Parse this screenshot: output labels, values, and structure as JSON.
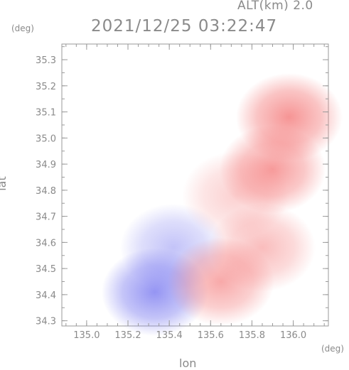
{
  "header": {
    "altitude": "ALT(km) 2.0",
    "timestamp": "2021/12/25 03:22:47"
  },
  "axes": {
    "y_unit": "(deg)",
    "x_unit": "(deg)",
    "y_label": "lat",
    "x_label": "lon"
  },
  "chart_data": {
    "type": "heatmap",
    "xlabel": "lon",
    "ylabel": "lat",
    "xlim": [
      134.88,
      136.17
    ],
    "ylim": [
      34.28,
      35.36
    ],
    "x_ticks": [
      135.0,
      135.2,
      135.4,
      135.6,
      135.8,
      136.0
    ],
    "x_tick_labels": [
      "135.0",
      "135.2",
      "135.4",
      "135.6",
      "135.8",
      "136.0"
    ],
    "y_ticks": [
      34.3,
      34.4,
      34.5,
      34.6,
      34.7,
      34.8,
      34.9,
      35.0,
      35.1,
      35.2,
      35.3
    ],
    "y_tick_labels": [
      "34.3",
      "34.4",
      "34.5",
      "34.6",
      "34.7",
      "34.8",
      "34.9",
      "35.0",
      "35.1",
      "35.2",
      "35.3"
    ],
    "colors": {
      "positive": "#f47a7a",
      "positive_light": "#f7c6c6",
      "negative": "#7a7af0",
      "negative_light": "#c9c9f3"
    },
    "regions": [
      {
        "sign": "negative",
        "lon": 135.42,
        "lat": 34.58,
        "intensity": 0.45
      },
      {
        "sign": "negative",
        "lon": 135.33,
        "lat": 34.41,
        "intensity": 0.8
      },
      {
        "sign": "positive",
        "lon": 135.72,
        "lat": 34.78,
        "intensity": 0.35
      },
      {
        "sign": "positive",
        "lon": 135.9,
        "lat": 34.88,
        "intensity": 0.75
      },
      {
        "sign": "positive",
        "lon": 135.98,
        "lat": 35.08,
        "intensity": 0.8
      },
      {
        "sign": "positive",
        "lon": 135.85,
        "lat": 34.58,
        "intensity": 0.5
      },
      {
        "sign": "positive",
        "lon": 135.65,
        "lat": 34.45,
        "intensity": 0.65
      }
    ]
  }
}
